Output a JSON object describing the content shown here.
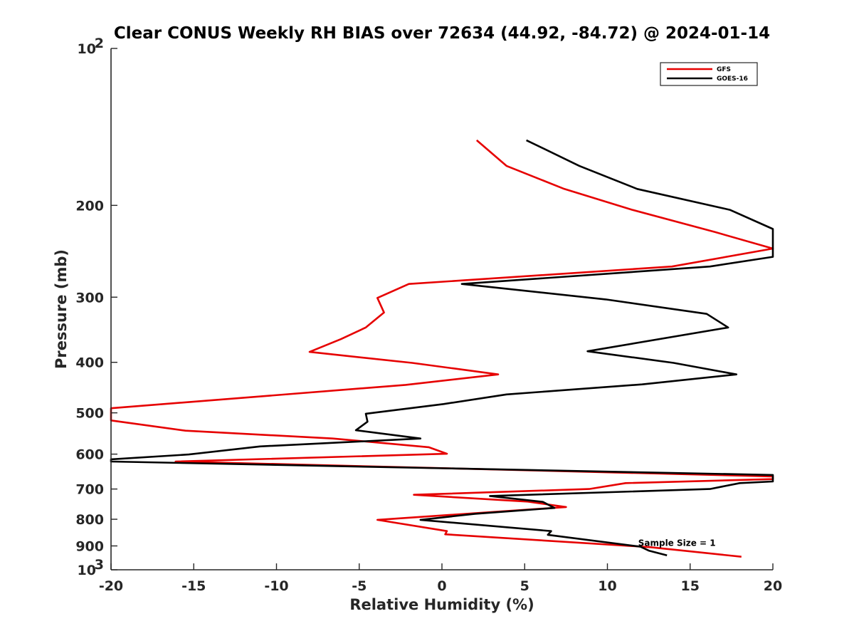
{
  "chart_data": {
    "type": "line",
    "title": "Clear CONUS Weekly RH BIAS over 72634 (44.92, -84.72) @ 2024-01-14",
    "xlabel": "Relative Humidity (%)",
    "ylabel": "Pressure (mb)",
    "xlim": [
      -20,
      20
    ],
    "ylim": [
      100,
      1000
    ],
    "yscale": "log",
    "y_reversed": true,
    "x_ticks": [
      {
        "value": -20,
        "label": "-20"
      },
      {
        "value": -15,
        "label": "-15"
      },
      {
        "value": -10,
        "label": "-10"
      },
      {
        "value": -5,
        "label": "-5"
      },
      {
        "value": 0,
        "label": "0"
      },
      {
        "value": 5,
        "label": "5"
      },
      {
        "value": 10,
        "label": "10"
      },
      {
        "value": 15,
        "label": "15"
      },
      {
        "value": 20,
        "label": "20"
      }
    ],
    "y_ticks": [
      {
        "value": 100,
        "label": "10",
        "sup": "2"
      },
      {
        "value": 200,
        "label": "200"
      },
      {
        "value": 300,
        "label": "300"
      },
      {
        "value": 400,
        "label": "400"
      },
      {
        "value": 500,
        "label": "500"
      },
      {
        "value": 600,
        "label": "600"
      },
      {
        "value": 700,
        "label": "700"
      },
      {
        "value": 800,
        "label": "800"
      },
      {
        "value": 900,
        "label": "900"
      },
      {
        "value": 1000,
        "label": "10",
        "sup": "3"
      }
    ],
    "legend_position": "top-right",
    "series": [
      {
        "name": "GFS",
        "color": "#e60000",
        "points": [
          {
            "x": 2.1,
            "p": 150
          },
          {
            "x": 3.9,
            "p": 168
          },
          {
            "x": 7.4,
            "p": 186
          },
          {
            "x": 11.5,
            "p": 204
          },
          {
            "x": 16.5,
            "p": 225
          },
          {
            "x": 20.0,
            "p": 242
          },
          {
            "x": 13.9,
            "p": 262
          },
          {
            "x": -2.0,
            "p": 283
          },
          {
            "x": -3.9,
            "p": 301
          },
          {
            "x": -3.5,
            "p": 321
          },
          {
            "x": -4.6,
            "p": 343
          },
          {
            "x": -6.1,
            "p": 361
          },
          {
            "x": -8.0,
            "p": 382
          },
          {
            "x": -1.8,
            "p": 401
          },
          {
            "x": 3.4,
            "p": 422
          },
          {
            "x": -2.2,
            "p": 442
          },
          {
            "x": -20.0,
            "p": 490
          },
          {
            "x": -20.0,
            "p": 517
          },
          {
            "x": -15.5,
            "p": 541
          },
          {
            "x": -6.6,
            "p": 560
          },
          {
            "x": -0.8,
            "p": 582
          },
          {
            "x": 0.3,
            "p": 599
          },
          {
            "x": -16.1,
            "p": 620
          },
          {
            "x": 20.0,
            "p": 662
          },
          {
            "x": 20.0,
            "p": 670
          },
          {
            "x": 11.1,
            "p": 682
          },
          {
            "x": 8.9,
            "p": 700
          },
          {
            "x": -1.7,
            "p": 718
          },
          {
            "x": 5.2,
            "p": 740
          },
          {
            "x": 7.5,
            "p": 758
          },
          {
            "x": -3.9,
            "p": 802
          },
          {
            "x": 0.3,
            "p": 843
          },
          {
            "x": 0.2,
            "p": 855
          },
          {
            "x": 12.6,
            "p": 905
          },
          {
            "x": 18.1,
            "p": 944
          }
        ]
      },
      {
        "name": "GOES-16",
        "color": "#000000",
        "points": [
          {
            "x": 5.1,
            "p": 150
          },
          {
            "x": 8.3,
            "p": 168
          },
          {
            "x": 11.8,
            "p": 186
          },
          {
            "x": 17.4,
            "p": 204
          },
          {
            "x": 20.0,
            "p": 222
          },
          {
            "x": 20.0,
            "p": 251
          },
          {
            "x": 16.2,
            "p": 262
          },
          {
            "x": 1.2,
            "p": 283
          },
          {
            "x": 9.9,
            "p": 303
          },
          {
            "x": 16.0,
            "p": 323
          },
          {
            "x": 17.3,
            "p": 343
          },
          {
            "x": 8.8,
            "p": 381
          },
          {
            "x": 14.0,
            "p": 401
          },
          {
            "x": 17.8,
            "p": 422
          },
          {
            "x": 12.1,
            "p": 441
          },
          {
            "x": 3.9,
            "p": 461
          },
          {
            "x": 0.1,
            "p": 481
          },
          {
            "x": -4.6,
            "p": 502
          },
          {
            "x": -4.5,
            "p": 520
          },
          {
            "x": -5.2,
            "p": 540
          },
          {
            "x": -1.3,
            "p": 560
          },
          {
            "x": -11.0,
            "p": 580
          },
          {
            "x": -15.3,
            "p": 601
          },
          {
            "x": -20.0,
            "p": 614
          },
          {
            "x": -20.0,
            "p": 620
          },
          {
            "x": 20.0,
            "p": 658
          },
          {
            "x": 20.0,
            "p": 677
          },
          {
            "x": 18.0,
            "p": 682
          },
          {
            "x": 16.2,
            "p": 700
          },
          {
            "x": 2.9,
            "p": 722
          },
          {
            "x": 6.1,
            "p": 741
          },
          {
            "x": 6.8,
            "p": 761
          },
          {
            "x": 2.0,
            "p": 781
          },
          {
            "x": -1.3,
            "p": 802
          },
          {
            "x": 6.6,
            "p": 843
          },
          {
            "x": 6.4,
            "p": 857
          },
          {
            "x": 12.0,
            "p": 903
          },
          {
            "x": 12.5,
            "p": 919
          },
          {
            "x": 13.6,
            "p": 938
          }
        ]
      }
    ],
    "annotation": {
      "text": "Sample Size = 1",
      "x": 14.2,
      "p": 900
    }
  }
}
